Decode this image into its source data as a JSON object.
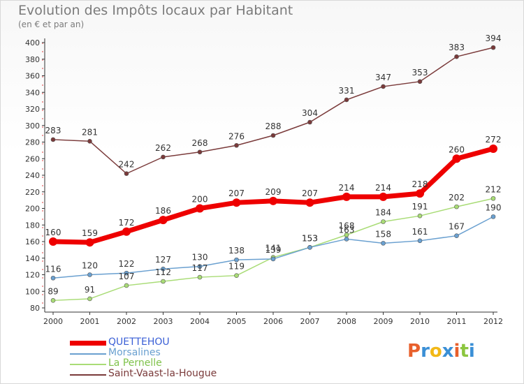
{
  "header": {
    "title": "Evolution des Impôts locaux par Habitant",
    "subtitle": "(en € et par an)"
  },
  "logo": {
    "text": "Proxiti",
    "colors": [
      "#e8602c",
      "#3a8fd6",
      "#f2b817",
      "#3a8fd6",
      "#e8602c",
      "#8cc63f",
      "#3a8fd6"
    ]
  },
  "chart_data": {
    "type": "line",
    "title": "Evolution des Impôts locaux par Habitant",
    "subtitle": "(en € et par an)",
    "xlabel": "",
    "ylabel": "",
    "x": [
      "2000",
      "2001",
      "2002",
      "2003",
      "2004",
      "2005",
      "2006",
      "2007",
      "2008",
      "2009",
      "2010",
      "2011",
      "2012"
    ],
    "ylim": [
      80,
      400
    ],
    "yticks": [
      80,
      100,
      120,
      140,
      160,
      180,
      200,
      220,
      240,
      260,
      280,
      300,
      320,
      340,
      360,
      380,
      400
    ],
    "grid": false,
    "legend_position": "bottom-left",
    "series": [
      {
        "name": "QUETTEHOU",
        "color": "#ee0000",
        "values": [
          160,
          159,
          172,
          186,
          200,
          207,
          209,
          207,
          214,
          214,
          218,
          260,
          272
        ]
      },
      {
        "name": "Morsalines",
        "color": "#6aa0d0",
        "values": [
          116,
          120,
          122,
          127,
          130,
          138,
          139,
          153,
          163,
          158,
          161,
          167,
          190
        ]
      },
      {
        "name": "La Pernelle",
        "color": "#a9dc76",
        "values": [
          89,
          91,
          107,
          112,
          117,
          119,
          141,
          153,
          168,
          184,
          191,
          202,
          212
        ]
      },
      {
        "name": "Saint-Vaast-la-Hougue",
        "color": "#7a3a3a",
        "values": [
          283,
          281,
          242,
          262,
          268,
          276,
          288,
          304,
          331,
          347,
          353,
          383,
          394
        ]
      }
    ]
  }
}
